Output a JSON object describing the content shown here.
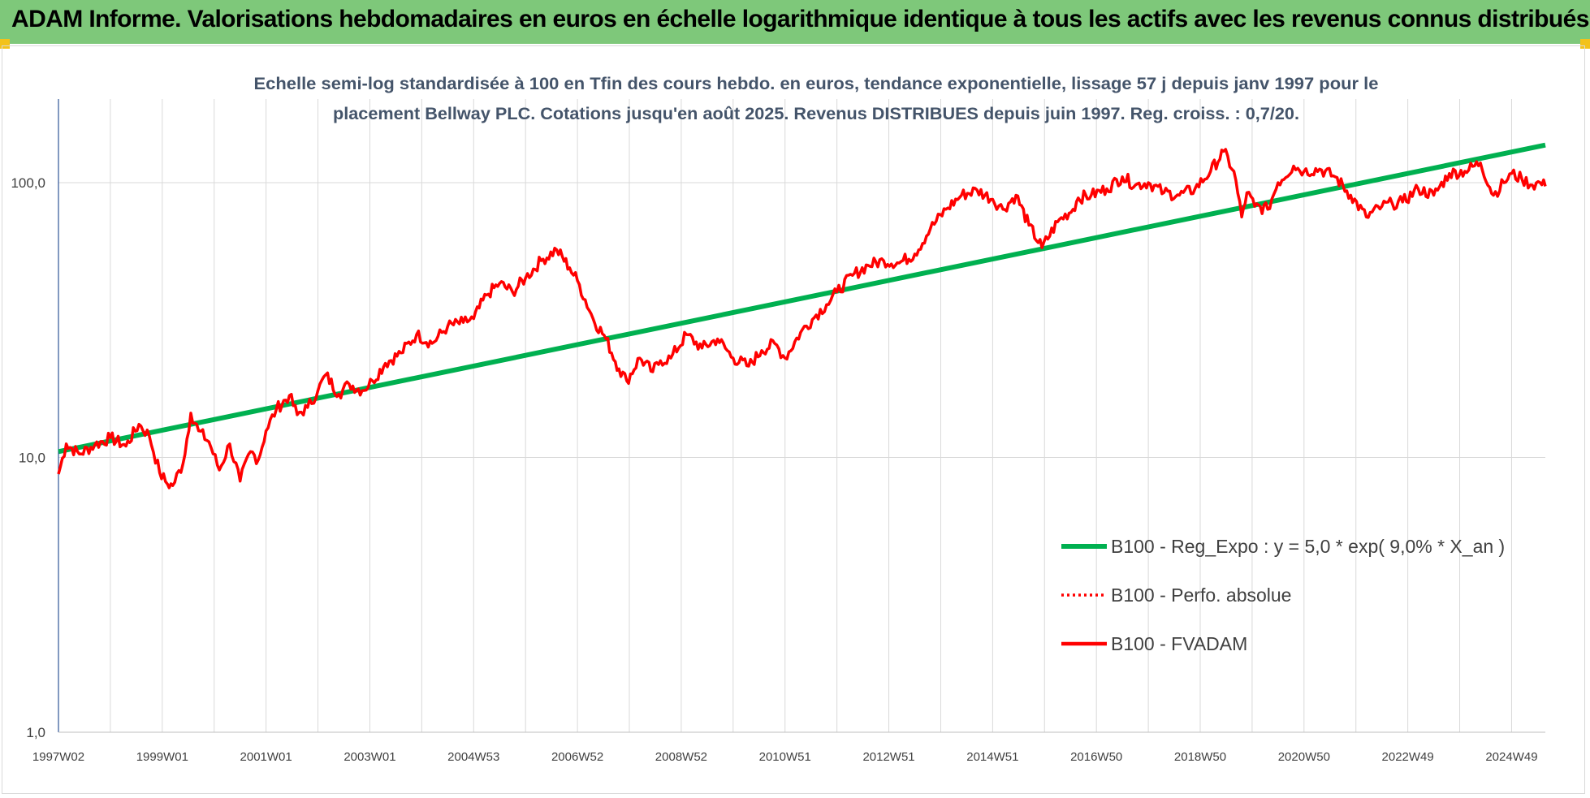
{
  "banner": {
    "title": "ADAM Informe. Valorisations hebdomadaires en euros en échelle logarithmique identique à tous les actifs avec les revenus connus distribués"
  },
  "colors": {
    "banner_bg": "#7ec87a",
    "corner_accent": "#f3c21a",
    "regression_line": "#00b050",
    "fvadam_line": "#ff0000",
    "axis_text": "#404040",
    "title_text": "#44546a",
    "grid": "#d9d9d9"
  },
  "chart_data": {
    "type": "line",
    "title_line1": "Echelle semi-log standardisée à 100 en Tfin des cours hebdo. en euros, tendance exponentielle, lissage 57 j depuis janv 1997 pour le",
    "title_line2": "placement Bellway PLC. Cotations jusqu'en août 2025. Revenus DISTRIBUES depuis juin 1997. Reg. croiss. : 0,7/20.",
    "y_scale": "log",
    "ylim": [
      1,
      200
    ],
    "y_ticks": [
      {
        "value": 1,
        "label": "1,0"
      },
      {
        "value": 10,
        "label": "10,0"
      },
      {
        "value": 100,
        "label": "100,0"
      }
    ],
    "xlim": [
      1997.0,
      2025.65
    ],
    "x_ticks": [
      {
        "x": 1997.0,
        "label": "1997W02"
      },
      {
        "x": 1999.0,
        "label": "1999W01"
      },
      {
        "x": 2001.0,
        "label": "2001W01"
      },
      {
        "x": 2003.0,
        "label": "2003W01"
      },
      {
        "x": 2005.0,
        "label": "2004W53"
      },
      {
        "x": 2007.0,
        "label": "2006W52"
      },
      {
        "x": 2009.0,
        "label": "2008W52"
      },
      {
        "x": 2011.0,
        "label": "2010W51"
      },
      {
        "x": 2013.0,
        "label": "2012W51"
      },
      {
        "x": 2015.0,
        "label": "2014W51"
      },
      {
        "x": 2017.0,
        "label": "2016W50"
      },
      {
        "x": 2019.0,
        "label": "2018W50"
      },
      {
        "x": 2021.0,
        "label": "2020W50"
      },
      {
        "x": 2023.0,
        "label": "2022W49"
      },
      {
        "x": 2025.0,
        "label": "2024W49"
      }
    ],
    "legend_position": "bottom-right",
    "series": [
      {
        "name": "B100 - Reg_Expo : y = 5,0 * exp( 9,0% *  X_an )",
        "style": "solid-thick",
        "x": [
          1997.0,
          2025.65
        ],
        "y": [
          10.5,
          137
        ]
      },
      {
        "name": "B100 - Perfo. absolue",
        "style": "dotted",
        "x": [],
        "y": []
      },
      {
        "name": "B100 - FVADAM",
        "style": "solid",
        "x": [
          1997.0,
          1997.15,
          1997.4,
          1997.7,
          1998.0,
          1998.3,
          1998.55,
          1998.75,
          1998.95,
          1999.1,
          1999.2,
          1999.4,
          1999.55,
          1999.7,
          1999.9,
          2000.1,
          2000.3,
          2000.5,
          2000.7,
          2000.85,
          2001.0,
          2001.2,
          2001.45,
          2001.6,
          2001.8,
          2002.0,
          2002.15,
          2002.4,
          2002.6,
          2002.85,
          2003.05,
          2003.3,
          2003.6,
          2003.9,
          2004.2,
          2004.5,
          2004.8,
          2005.0,
          2005.25,
          2005.5,
          2005.75,
          2006.0,
          2006.3,
          2006.6,
          2006.85,
          2007.0,
          2007.3,
          2007.55,
          2007.8,
          2007.95,
          2008.2,
          2008.45,
          2008.6,
          2008.8,
          2009.1,
          2009.4,
          2009.7,
          2010.0,
          2010.3,
          2010.55,
          2010.8,
          2011.0,
          2011.3,
          2011.6,
          2011.8,
          2012.0,
          2012.3,
          2012.6,
          2012.9,
          2013.2,
          2013.5,
          2013.8,
          2014.1,
          2014.4,
          2014.7,
          2015.0,
          2015.2,
          2015.45,
          2015.7,
          2015.95,
          2016.25,
          2016.55,
          2016.65,
          2016.9,
          2017.2,
          2017.5,
          2017.75,
          2018.0,
          2018.3,
          2018.6,
          2018.9,
          2019.2,
          2019.45,
          2019.65,
          2019.8,
          2019.9,
          2020.05,
          2020.3,
          2020.5,
          2020.8,
          2021.0,
          2021.3,
          2021.6,
          2021.9,
          2022.2,
          2022.5,
          2022.7,
          2022.9,
          2023.2,
          2023.5,
          2023.8,
          2024.1,
          2024.4,
          2024.65,
          2024.85,
          2025.0,
          2025.2,
          2025.4,
          2025.55,
          2025.65
        ],
        "y": [
          8.7,
          11.2,
          10.3,
          11.1,
          11.8,
          11.0,
          13.2,
          12.0,
          8.8,
          8.0,
          7.9,
          9.5,
          14.5,
          12.5,
          11.4,
          9.0,
          11.2,
          8.2,
          10.5,
          9.8,
          12.5,
          15.0,
          16.8,
          14.3,
          15.2,
          17.5,
          20.0,
          17.0,
          18.5,
          17.5,
          19.0,
          22.0,
          24.0,
          28.0,
          26.0,
          30.0,
          31.0,
          32.0,
          39.0,
          43.0,
          40.0,
          45.0,
          52.0,
          57.0,
          49.0,
          44.0,
          32.0,
          27.0,
          21.0,
          19.0,
          23.0,
          20.5,
          22.5,
          23.0,
          28.0,
          25.0,
          27.0,
          23.0,
          21.5,
          24.5,
          26.0,
          23.0,
          28.5,
          33.0,
          36.0,
          40.0,
          46.0,
          50.0,
          52.0,
          51.0,
          55.0,
          68.0,
          80.0,
          90.0,
          94.0,
          87.0,
          80.0,
          90.0,
          70.0,
          58.0,
          72.0,
          80.0,
          88.0,
          90.0,
          95.0,
          105.0,
          98.0,
          100.0,
          92.0,
          90.0,
          95.0,
          110.0,
          130.0,
          110.0,
          75.0,
          92.0,
          82.0,
          80.0,
          100.0,
          115.0,
          110.0,
          112.0,
          105.0,
          90.0,
          75.0,
          82.0,
          84.0,
          85.0,
          95.0,
          90.0,
          108.0,
          110.0,
          118.0,
          90.0,
          100.0,
          108.0,
          103.0,
          98.0,
          100.0,
          97.0
        ]
      }
    ]
  }
}
